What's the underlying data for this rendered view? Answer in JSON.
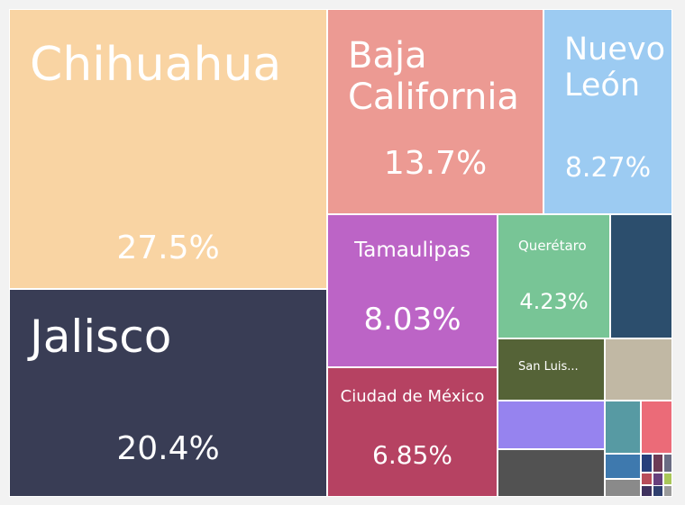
{
  "chart_data": {
    "type": "treemap",
    "title": "",
    "tiles": [
      {
        "label": "Chihuahua",
        "share_label": "27.5%",
        "value": 27.5,
        "color": "#f9d4a3",
        "text_color": "#ffffff"
      },
      {
        "label": "Jalisco",
        "share_label": "20.4%",
        "value": 20.4,
        "color": "#393d55",
        "text_color": "#ffffff"
      },
      {
        "label": "Baja California",
        "share_label": "13.7%",
        "value": 13.7,
        "color": "#ec9a93",
        "text_color": "#ffffff"
      },
      {
        "label": "Nuevo León",
        "share_label": "8.27%",
        "value": 8.27,
        "color": "#9ccbf2",
        "text_color": "#ffffff"
      },
      {
        "label": "Tamaulipas",
        "share_label": "8.03%",
        "value": 8.03,
        "color": "#bc64c6",
        "text_color": "#ffffff"
      },
      {
        "label": "Ciudad de México",
        "share_label": "6.85%",
        "value": 6.85,
        "color": "#b64262",
        "text_color": "#ffffff"
      },
      {
        "label": "Querétaro",
        "share_label": "4.23%",
        "value": 4.23,
        "color": "#78c596",
        "text_color": "#ffffff"
      },
      {
        "label": "",
        "share_label": "",
        "value": 3.0,
        "color": "#2c4e6d",
        "text_color": "#ffffff"
      },
      {
        "label": "San Luis...",
        "share_label": "",
        "value": 1.9,
        "color": "#556337",
        "text_color": "#ffffff"
      },
      {
        "label": "",
        "share_label": "",
        "value": 1.7,
        "color": "#c1b8a4",
        "text_color": "#ffffff"
      },
      {
        "label": "",
        "share_label": "",
        "value": 1.3,
        "color": "#9683ef",
        "text_color": "#ffffff"
      },
      {
        "label": "",
        "share_label": "",
        "value": 1.3,
        "color": "#525252",
        "text_color": "#ffffff"
      },
      {
        "label": "",
        "share_label": "",
        "value": 0.6,
        "color": "#579aa3",
        "text_color": "#ffffff"
      },
      {
        "label": "",
        "share_label": "",
        "value": 0.5,
        "color": "#eb6b78",
        "text_color": "#ffffff"
      },
      {
        "label": "",
        "share_label": "",
        "value": 0.3,
        "color": "#3e79ae",
        "text_color": "#ffffff"
      },
      {
        "label": "",
        "share_label": "",
        "value": 0.2,
        "color": "#8a8a8a",
        "text_color": "#ffffff"
      },
      {
        "label": "",
        "share_label": "",
        "value": 0.1,
        "color": "#283f7b",
        "text_color": "#ffffff"
      },
      {
        "label": "",
        "share_label": "",
        "value": 0.1,
        "color": "#6d3c56",
        "text_color": "#ffffff"
      },
      {
        "label": "",
        "share_label": "",
        "value": 0.1,
        "color": "#6a6c83",
        "text_color": "#ffffff"
      },
      {
        "label": "",
        "share_label": "",
        "value": 0.1,
        "color": "#b84d5a",
        "text_color": "#ffffff"
      },
      {
        "label": "",
        "share_label": "",
        "value": 0.1,
        "color": "#3f325e",
        "text_color": "#ffffff"
      },
      {
        "label": "",
        "share_label": "",
        "value": 0.1,
        "color": "#68407d",
        "text_color": "#ffffff"
      },
      {
        "label": "",
        "share_label": "",
        "value": 0.1,
        "color": "#a9c758",
        "text_color": "#ffffff"
      },
      {
        "label": "",
        "share_label": "",
        "value": 0.1,
        "color": "#2f3f6e",
        "text_color": "#ffffff"
      },
      {
        "label": "",
        "share_label": "",
        "value": 0.1,
        "color": "#9a9a9a",
        "text_color": "#ffffff"
      }
    ]
  }
}
